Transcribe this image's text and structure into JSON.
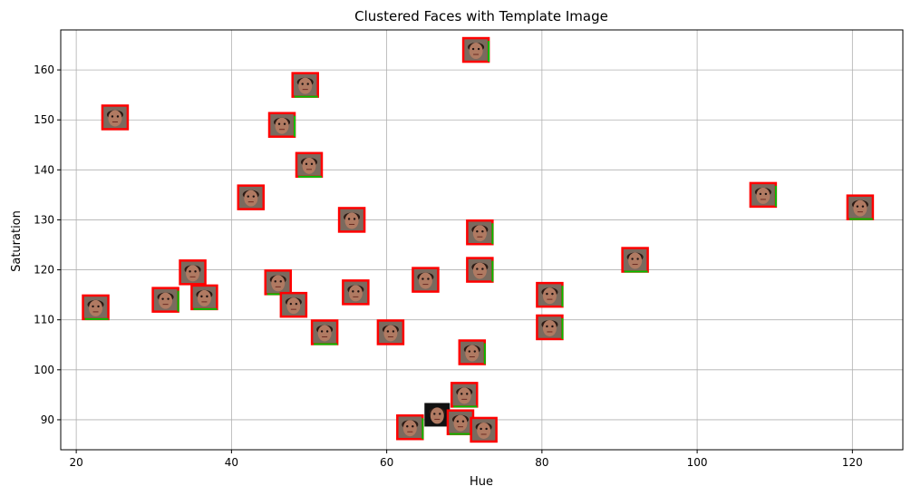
{
  "chart_data": {
    "type": "scatter",
    "title": "Clustered Faces with Template Image",
    "xlabel": "Hue",
    "ylabel": "Saturation",
    "xlim": [
      18,
      126.5
    ],
    "ylim": [
      84,
      168
    ],
    "xticks": [
      20,
      40,
      60,
      80,
      100,
      120
    ],
    "yticks": [
      90,
      100,
      110,
      120,
      130,
      140,
      150,
      160
    ],
    "grid": true,
    "marker": "face-thumbnail",
    "points": [
      {
        "x": 71.5,
        "y": 164
      },
      {
        "x": 49.5,
        "y": 157
      },
      {
        "x": 25,
        "y": 150.5
      },
      {
        "x": 46.5,
        "y": 149
      },
      {
        "x": 50,
        "y": 141
      },
      {
        "x": 42.5,
        "y": 134.5
      },
      {
        "x": 108.5,
        "y": 135
      },
      {
        "x": 121,
        "y": 132.5
      },
      {
        "x": 55.5,
        "y": 130
      },
      {
        "x": 72,
        "y": 127.5
      },
      {
        "x": 92,
        "y": 122
      },
      {
        "x": 35,
        "y": 119.5
      },
      {
        "x": 72,
        "y": 120
      },
      {
        "x": 46,
        "y": 117.5
      },
      {
        "x": 65,
        "y": 118
      },
      {
        "x": 31.5,
        "y": 114
      },
      {
        "x": 36.5,
        "y": 114.5
      },
      {
        "x": 56,
        "y": 115.5
      },
      {
        "x": 81,
        "y": 115
      },
      {
        "x": 22.5,
        "y": 112.5
      },
      {
        "x": 48,
        "y": 113
      },
      {
        "x": 81,
        "y": 108.5
      },
      {
        "x": 52,
        "y": 107.5
      },
      {
        "x": 60.5,
        "y": 107.5
      },
      {
        "x": 71,
        "y": 103.5
      },
      {
        "x": 70,
        "y": 95
      },
      {
        "x": 66.5,
        "y": 91
      },
      {
        "x": 63,
        "y": 88.5
      },
      {
        "x": 69.5,
        "y": 89.5
      },
      {
        "x": 72.5,
        "y": 88
      }
    ],
    "template_point": {
      "x": 66.5,
      "y": 91
    }
  },
  "colors": {
    "grid": "#b0b0b0",
    "axis": "#000000",
    "frame_red": "#ff0000",
    "frame_green": "#00c000",
    "skin": "#b07a62",
    "hair": "#2a1a14",
    "template_bg": "#111111"
  }
}
